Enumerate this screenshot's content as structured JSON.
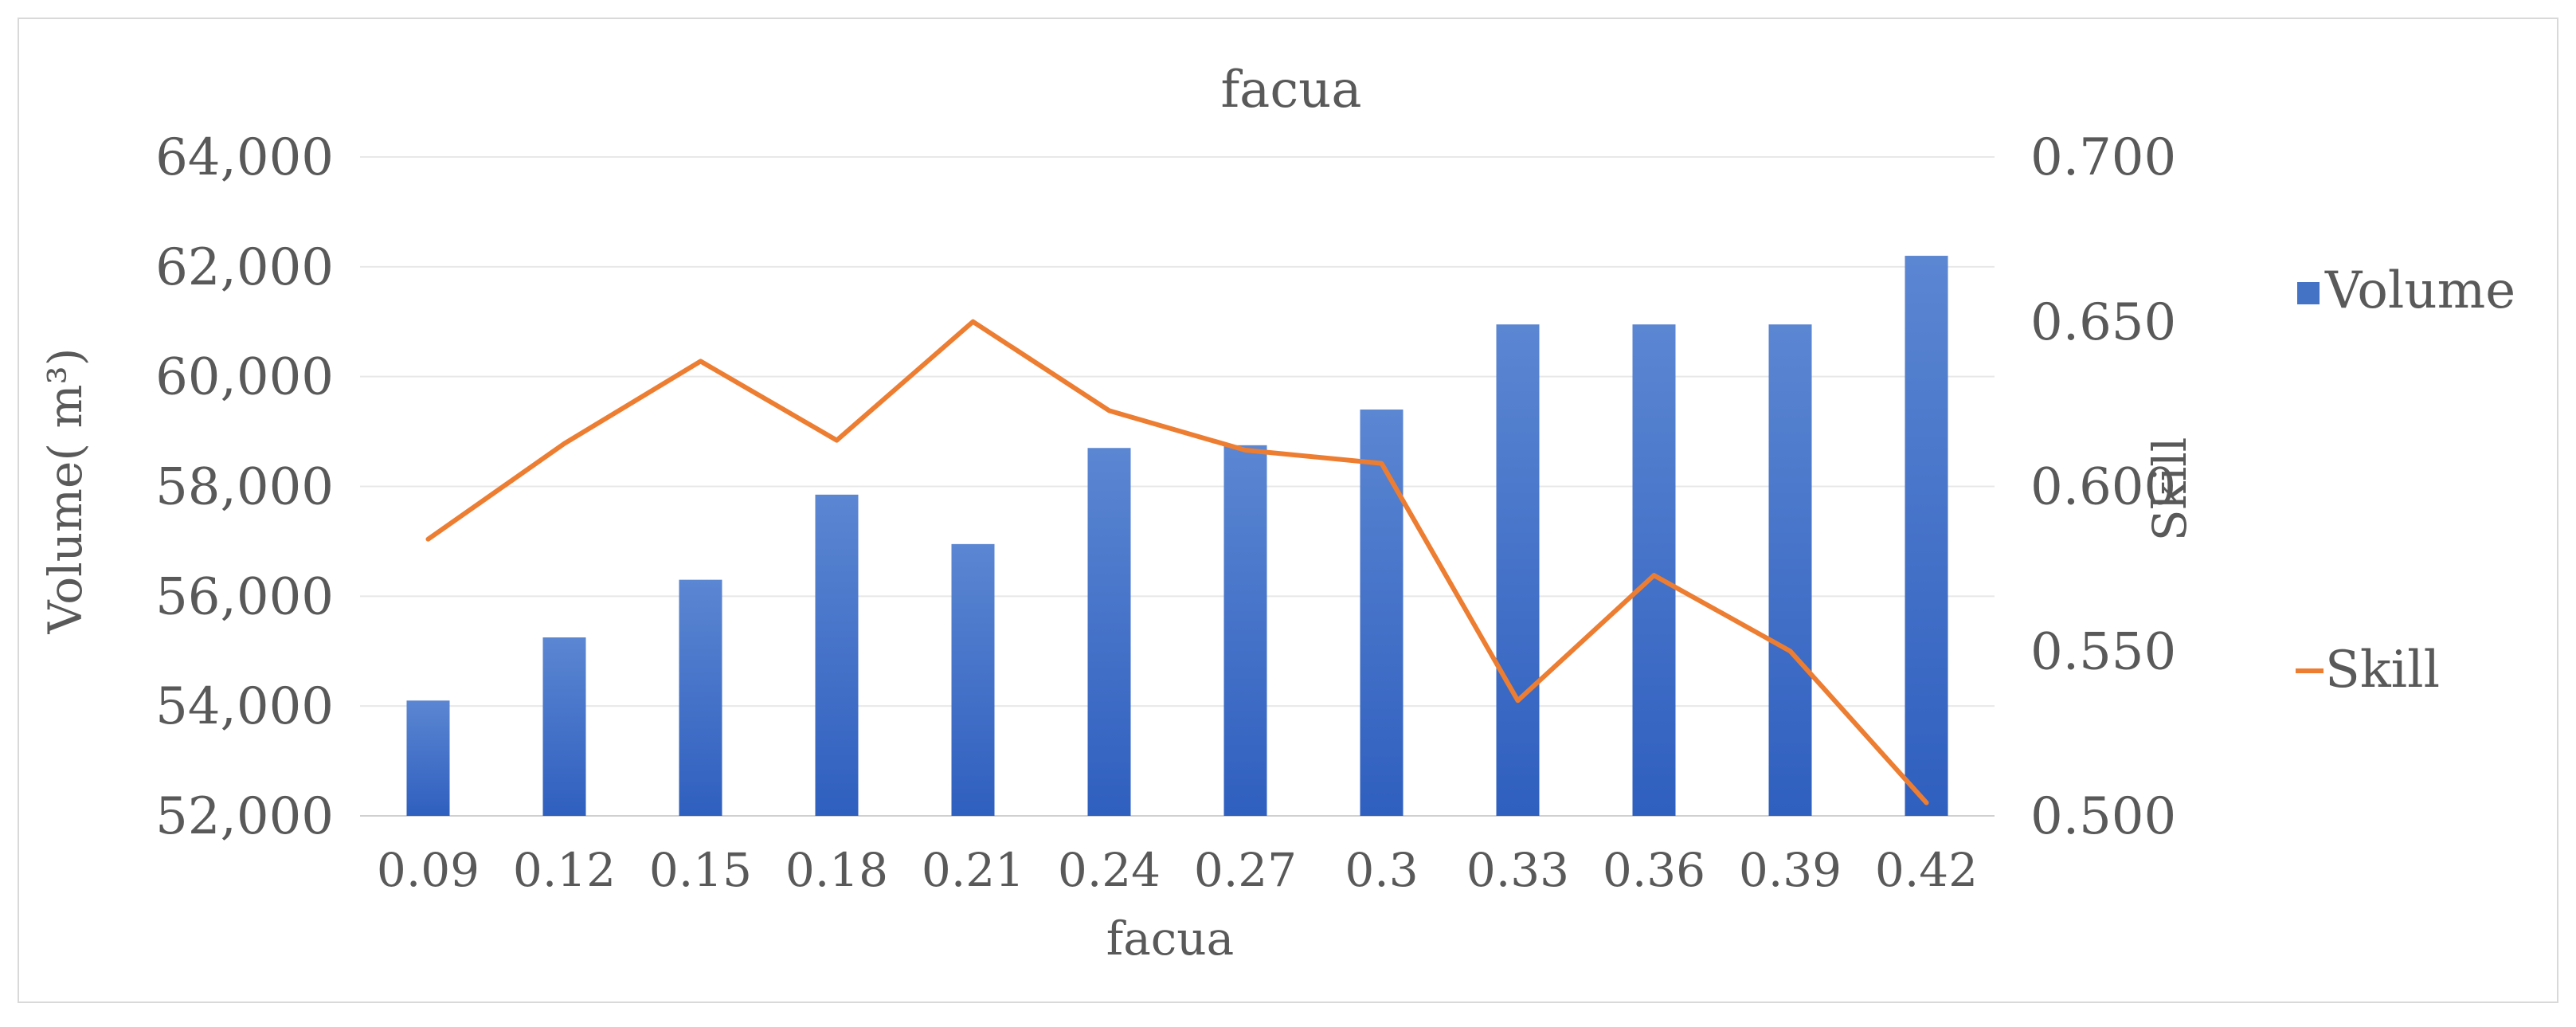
{
  "chart_data": {
    "type": "bar",
    "title": "facua",
    "xlabel": "facua",
    "ylabel": "Volume( m³)",
    "y2label": "Skill",
    "categories": [
      "0.09",
      "0.12",
      "0.15",
      "0.18",
      "0.21",
      "0.24",
      "0.27",
      "0.3",
      "0.33",
      "0.36",
      "0.39",
      "0.42"
    ],
    "ylim": [
      52000,
      64000
    ],
    "y_ticks": [
      "52,000",
      "54,000",
      "56,000",
      "58,000",
      "60,000",
      "62,000",
      "64,000"
    ],
    "y2lim": [
      0.5,
      0.7
    ],
    "y2_ticks": [
      "0.500",
      "0.550",
      "0.600",
      "0.650",
      "0.700"
    ],
    "grid": true,
    "legend_position": "right",
    "series": [
      {
        "name": "Volume",
        "type": "bar",
        "axis": "left",
        "color": "#4472C4",
        "values": [
          54100,
          55250,
          56300,
          57850,
          56950,
          58700,
          58750,
          59400,
          60950,
          60950,
          60950,
          62200
        ]
      },
      {
        "name": "Skill",
        "type": "line",
        "axis": "right",
        "color": "#ED7D31",
        "values": [
          0.584,
          0.613,
          0.638,
          0.614,
          0.65,
          0.623,
          0.611,
          0.607,
          0.535,
          0.573,
          0.55,
          0.504
        ]
      }
    ]
  }
}
